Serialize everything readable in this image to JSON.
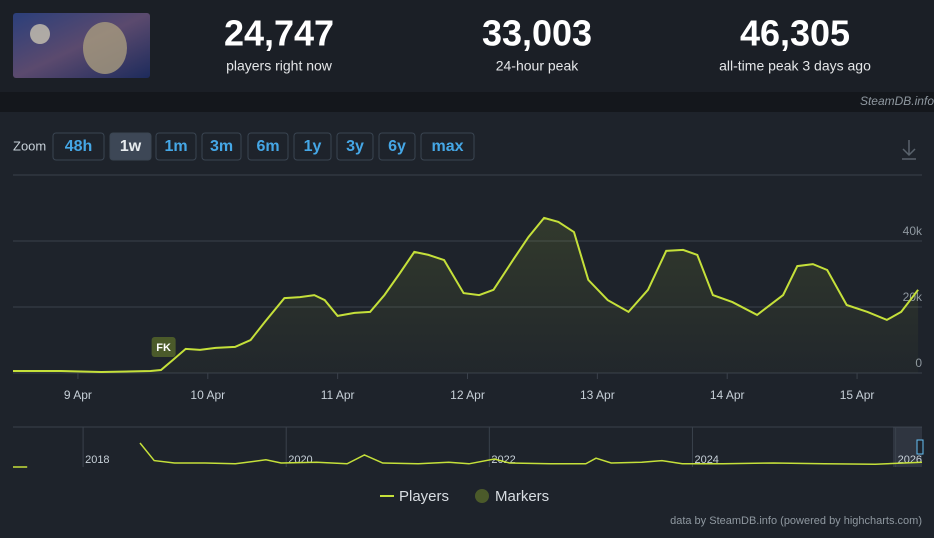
{
  "stats": [
    {
      "value": "24,747",
      "label": "players right now"
    },
    {
      "value": "33,003",
      "label": "24-hour peak"
    },
    {
      "value": "46,305",
      "label": "all-time peak 3 days ago"
    }
  ],
  "source": "SteamDB.info",
  "zoom": {
    "label": "Zoom",
    "options": [
      "48h",
      "1w",
      "1m",
      "3m",
      "6m",
      "1y",
      "3y",
      "6y",
      "max"
    ],
    "active": "1w"
  },
  "chart_data": {
    "type": "line",
    "x": [
      8.5,
      8.87,
      9.18,
      9.56,
      9.64,
      9.73,
      9.83,
      9.94,
      10.06,
      10.21,
      10.33,
      10.44,
      10.59,
      10.71,
      10.82,
      10.9,
      11.0,
      11.13,
      11.25,
      11.36,
      11.48,
      11.59,
      11.7,
      11.82,
      11.97,
      12.09,
      12.2,
      12.36,
      12.47,
      12.59,
      12.7,
      12.82,
      12.93,
      13.08,
      13.24,
      13.39,
      13.53,
      13.66,
      13.77,
      13.89,
      14.04,
      14.23,
      14.43,
      14.54,
      14.66,
      14.77,
      14.92,
      15.08,
      15.23,
      15.34,
      15.47
    ],
    "series": [
      {
        "name": "Players",
        "color": "#c5e03a",
        "values": [
          600,
          600,
          300,
          600,
          900,
          3900,
          7300,
          7000,
          7600,
          7900,
          10000,
          15500,
          22700,
          23000,
          23600,
          22100,
          17300,
          18200,
          18500,
          23600,
          30300,
          36700,
          35800,
          34200,
          24200,
          23600,
          25200,
          34800,
          41200,
          47000,
          45800,
          42700,
          28200,
          22100,
          18500,
          25200,
          37000,
          37300,
          35800,
          23600,
          21500,
          17600,
          23600,
          32400,
          33000,
          31200,
          20600,
          18500,
          16100,
          18500,
          25200
        ]
      }
    ],
    "xlim": [
      8.5,
      15.5
    ],
    "xticks": [
      {
        "value": 9,
        "label": "9 Apr"
      },
      {
        "value": 10,
        "label": "10 Apr"
      },
      {
        "value": 11,
        "label": "11 Apr"
      },
      {
        "value": 12,
        "label": "12 Apr"
      },
      {
        "value": 13,
        "label": "13 Apr"
      },
      {
        "value": 14,
        "label": "14 Apr"
      },
      {
        "value": 15,
        "label": "15 Apr"
      }
    ],
    "ylim": [
      0,
      60000
    ],
    "yticks": [
      0,
      {
        "value": 20000,
        "label": "20k"
      },
      {
        "value": 40000,
        "label": "40k"
      }
    ],
    "grid": true,
    "markers": {
      "name": "Markers",
      "color": "#4b5a2a",
      "points": [
        {
          "x": 9.66,
          "label": "FK"
        }
      ]
    },
    "navigator": {
      "x": [
        2017.31,
        2017.45,
        2017.9,
        2018.56,
        2018.7,
        2018.9,
        2019.2,
        2019.5,
        2019.8,
        2019.95,
        2020.3,
        2020.6,
        2020.77,
        2020.95,
        2021.3,
        2021.6,
        2021.8,
        2022.05,
        2022.2,
        2022.6,
        2022.95,
        2023.05,
        2023.2,
        2023.5,
        2023.7,
        2023.9,
        2024.3,
        2024.8,
        2025.3,
        2025.8,
        2026.26
      ],
      "values": [
        0,
        0,
        null,
        30000,
        8000,
        5000,
        5000,
        4000,
        9000,
        5000,
        6000,
        4000,
        15000,
        5000,
        4000,
        6000,
        4000,
        10000,
        5000,
        4000,
        4000,
        11000,
        5000,
        6000,
        8000,
        4000,
        4000,
        5000,
        4000,
        3500,
        6000
      ],
      "xlim": [
        2017.31,
        2026.26
      ],
      "ylim": [
        0,
        50000
      ],
      "xticks": [
        2018,
        2020,
        2022,
        2024,
        2026
      ]
    },
    "credit": "data by SteamDB.info (powered by highcharts.com)"
  }
}
